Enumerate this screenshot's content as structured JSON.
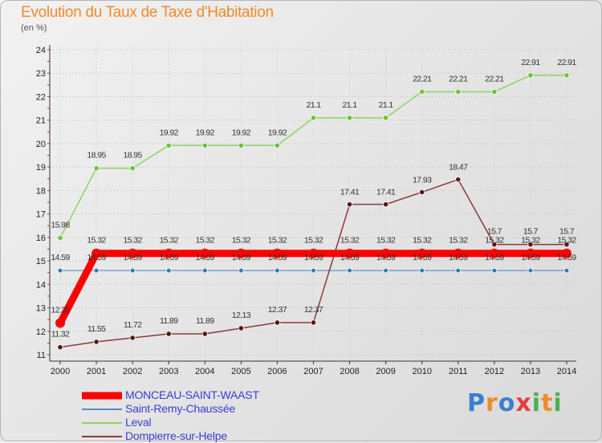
{
  "header": {
    "title": "Evolution du Taux de Taxe d'Habitation",
    "subtitle": "(en %)"
  },
  "logo": {
    "text": "Proxiti",
    "colors": [
      "#3a7fd0",
      "#f08a2a",
      "#e63c3c",
      "#4caf50"
    ]
  },
  "chart_data": {
    "type": "line",
    "title": "Evolution du Taux de Taxe d'Habitation",
    "ylabel": "(en %)",
    "xlabel": "",
    "ylim": [
      11,
      24
    ],
    "yticks": [
      11,
      12,
      13,
      14,
      15,
      16,
      17,
      18,
      19,
      20,
      21,
      22,
      23,
      24
    ],
    "grid": true,
    "legend_position": "bottom-left",
    "x": [
      "2000",
      "2001",
      "2002",
      "2003",
      "2004",
      "2005",
      "2006",
      "2007",
      "2008",
      "2009",
      "2010",
      "2011",
      "2012",
      "2013",
      "2014"
    ],
    "series": [
      {
        "name": "MONCEAU-SAINT-WAAST",
        "color": "#ff0000",
        "marker_color": "#ff0000",
        "values": [
          12.35,
          15.32,
          15.32,
          15.32,
          15.32,
          15.32,
          15.32,
          15.32,
          15.32,
          15.32,
          15.32,
          15.32,
          15.32,
          15.32,
          15.32
        ],
        "labels": [
          "12.35",
          "15.32",
          "15.32",
          "15.32",
          "15.32",
          "15.32",
          "15.32",
          "15.32",
          "15.32",
          "15.32",
          "15.32",
          "15.32",
          "15.32",
          "15.32",
          "15.32"
        ]
      },
      {
        "name": "Saint-Remy-Chaussée",
        "color": "#4f8ec4",
        "marker_color": "#3a78b5",
        "values": [
          14.59,
          14.59,
          14.59,
          14.59,
          14.59,
          14.59,
          14.59,
          14.59,
          14.59,
          14.59,
          14.59,
          14.59,
          14.59,
          14.59,
          14.59
        ],
        "labels": [
          "14.59",
          "14.59",
          "14.59",
          "14.59",
          "14.59",
          "14.59",
          "14.59",
          "14.59",
          "14.59",
          "14.59",
          "14.59",
          "14.59",
          "14.59",
          "14.59",
          "14.59"
        ]
      },
      {
        "name": "Leval",
        "color": "#8fd16a",
        "marker_color": "#6cc23a",
        "values": [
          15.98,
          18.95,
          18.95,
          19.92,
          19.92,
          19.92,
          19.92,
          21.1,
          21.1,
          21.1,
          22.21,
          22.21,
          22.21,
          22.91,
          22.91
        ],
        "labels": [
          "15.98",
          "18.95",
          "18.95",
          "19.92",
          "19.92",
          "19.92",
          "19.92",
          "21.1",
          "21.1",
          "21.1",
          "22.21",
          "22.21",
          "22.21",
          "22.91",
          "22.91"
        ]
      },
      {
        "name": "Dompierre-sur-Helpe",
        "color": "#8b3a3a",
        "marker_color": "#5a1515",
        "values": [
          11.32,
          11.55,
          11.72,
          11.89,
          11.89,
          12.13,
          12.37,
          12.37,
          17.41,
          17.41,
          17.93,
          18.47,
          15.7,
          15.7,
          15.7
        ],
        "labels": [
          "11.32",
          "11.55",
          "11.72",
          "11.89",
          "11.89",
          "12.13",
          "12.37",
          "12.37",
          "17.41",
          "17.41",
          "17.93",
          "18.47",
          "15.7",
          "15.7",
          "15.7"
        ]
      }
    ]
  }
}
